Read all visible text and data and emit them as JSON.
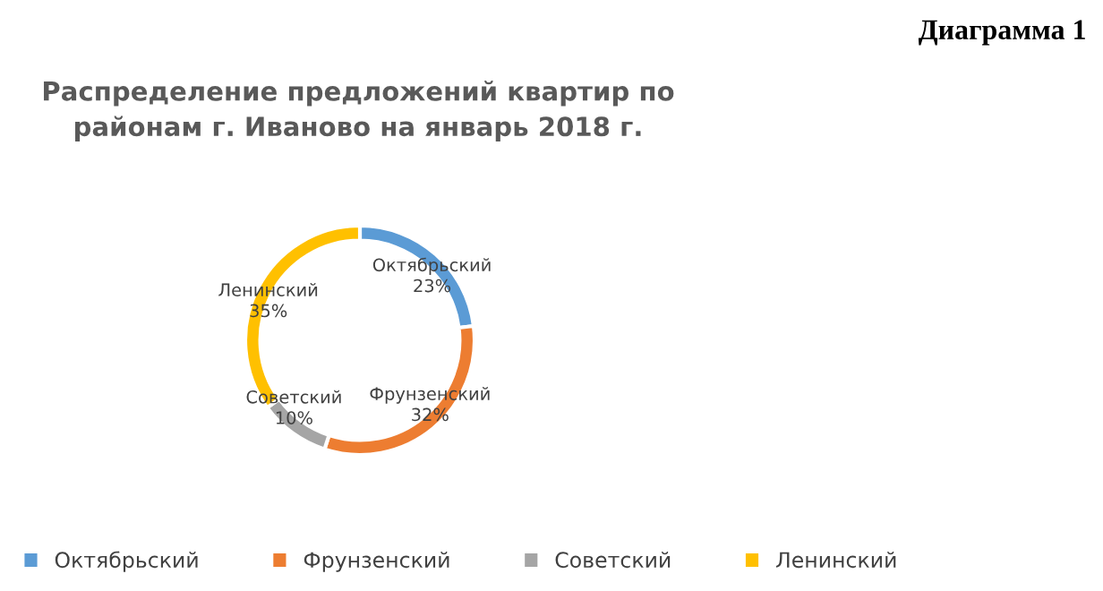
{
  "chart_data": {
    "type": "donut",
    "title": "Распределение предложений квартир по\nрайонам г. Иваново на январь 2018 г.",
    "categories": [
      "Октябрьский",
      "Фрунзенский",
      "Советский",
      "Ленинский"
    ],
    "values": [
      23,
      32,
      10,
      35
    ],
    "colors": [
      "#5b9bd5",
      "#ed7d31",
      "#a5a5a5",
      "#ffc000"
    ],
    "value_labels": [
      "23%",
      "32%",
      "10%",
      "35%"
    ],
    "legend": "bottom",
    "annotations": [
      "Диаграмма 1"
    ]
  }
}
